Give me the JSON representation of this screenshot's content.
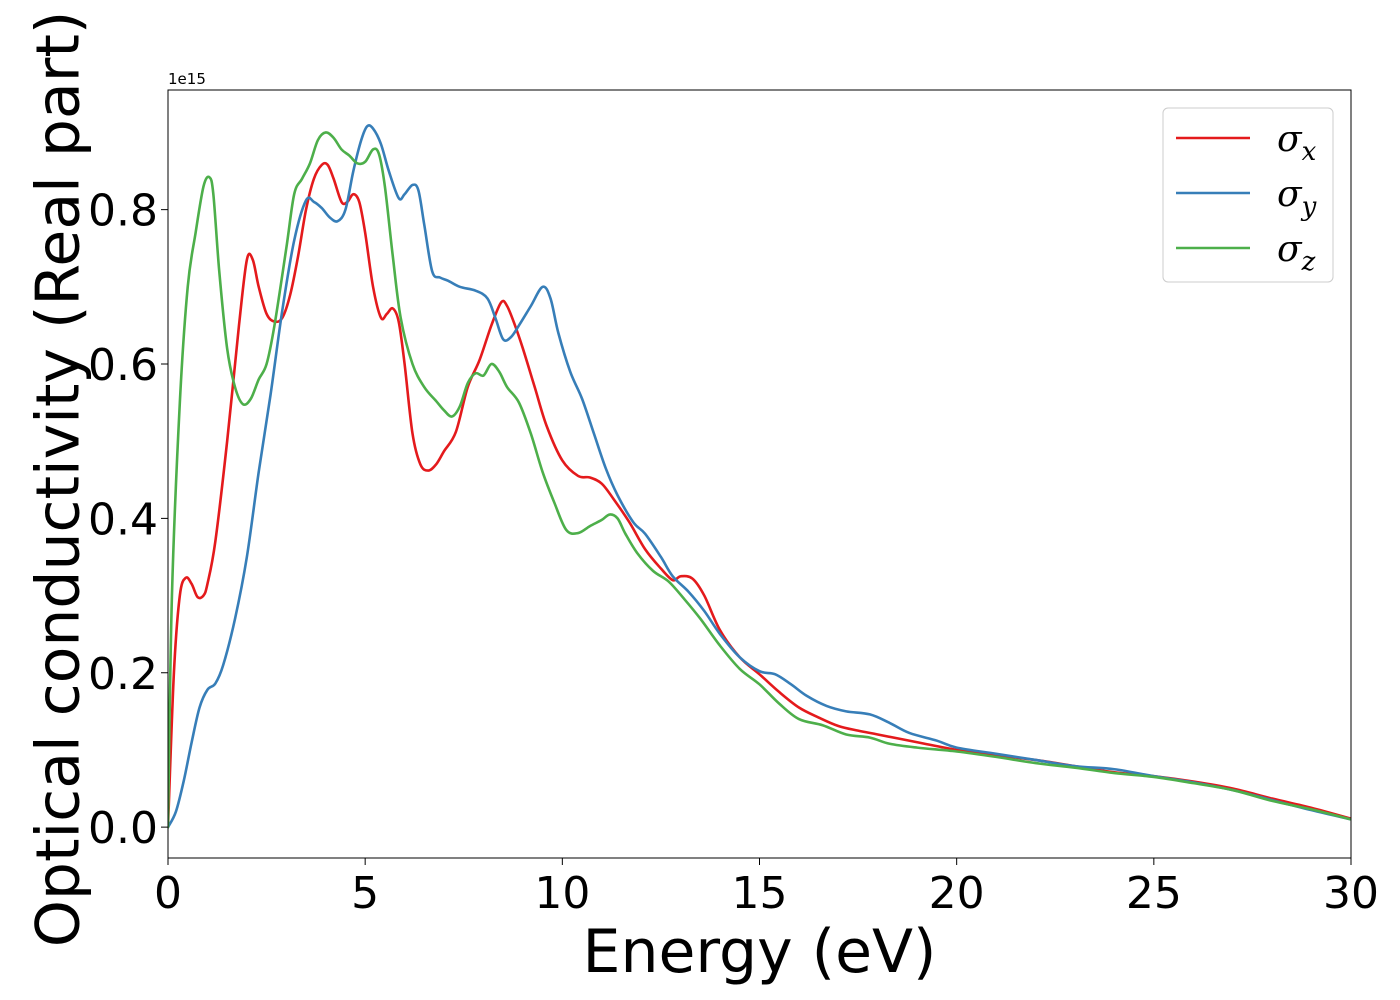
{
  "chart_data": {
    "type": "line",
    "xlabel": "Energy (eV)",
    "ylabel": "Optical conductivity (Real part)",
    "y_offset_text": "1e15",
    "xlim": [
      0,
      30
    ],
    "ylim": [
      -0.04,
      0.955
    ],
    "x_ticks": [
      0,
      5,
      10,
      15,
      20,
      25,
      30
    ],
    "x_tick_labels": [
      "0",
      "5",
      "10",
      "15",
      "20",
      "25",
      "30"
    ],
    "y_ticks": [
      0.0,
      0.2,
      0.4,
      0.6,
      0.8
    ],
    "y_tick_labels": [
      "0.0",
      "0.2",
      "0.4",
      "0.6",
      "0.8"
    ],
    "grid": false,
    "legend_position": "top-right",
    "series": [
      {
        "name": "σx",
        "legend_base": "σ",
        "legend_sub": "x",
        "color": "#e41a1c",
        "points": [
          [
            0,
            0
          ],
          [
            0.15,
            0.2
          ],
          [
            0.3,
            0.3
          ],
          [
            0.45,
            0.323
          ],
          [
            0.6,
            0.315
          ],
          [
            0.75,
            0.298
          ],
          [
            0.9,
            0.3
          ],
          [
            1.0,
            0.315
          ],
          [
            1.2,
            0.37
          ],
          [
            1.5,
            0.5
          ],
          [
            1.8,
            0.65
          ],
          [
            2.0,
            0.735
          ],
          [
            2.15,
            0.735
          ],
          [
            2.3,
            0.7
          ],
          [
            2.5,
            0.665
          ],
          [
            2.7,
            0.655
          ],
          [
            2.9,
            0.66
          ],
          [
            3.1,
            0.69
          ],
          [
            3.3,
            0.74
          ],
          [
            3.5,
            0.8
          ],
          [
            3.7,
            0.84
          ],
          [
            3.9,
            0.858
          ],
          [
            4.05,
            0.858
          ],
          [
            4.2,
            0.84
          ],
          [
            4.4,
            0.81
          ],
          [
            4.55,
            0.81
          ],
          [
            4.7,
            0.82
          ],
          [
            4.85,
            0.81
          ],
          [
            5.0,
            0.77
          ],
          [
            5.2,
            0.7
          ],
          [
            5.4,
            0.66
          ],
          [
            5.55,
            0.665
          ],
          [
            5.7,
            0.672
          ],
          [
            5.85,
            0.655
          ],
          [
            6.0,
            0.6
          ],
          [
            6.2,
            0.51
          ],
          [
            6.4,
            0.47
          ],
          [
            6.6,
            0.462
          ],
          [
            6.8,
            0.47
          ],
          [
            7.0,
            0.487
          ],
          [
            7.3,
            0.512
          ],
          [
            7.6,
            0.57
          ],
          [
            7.9,
            0.605
          ],
          [
            8.2,
            0.65
          ],
          [
            8.45,
            0.68
          ],
          [
            8.6,
            0.675
          ],
          [
            8.8,
            0.65
          ],
          [
            9.0,
            0.62
          ],
          [
            9.3,
            0.57
          ],
          [
            9.6,
            0.52
          ],
          [
            10.0,
            0.475
          ],
          [
            10.4,
            0.455
          ],
          [
            10.7,
            0.453
          ],
          [
            11.0,
            0.445
          ],
          [
            11.3,
            0.425
          ],
          [
            11.7,
            0.395
          ],
          [
            12.1,
            0.36
          ],
          [
            12.5,
            0.335
          ],
          [
            12.8,
            0.32
          ],
          [
            13.0,
            0.325
          ],
          [
            13.3,
            0.322
          ],
          [
            13.6,
            0.3
          ],
          [
            14.0,
            0.255
          ],
          [
            14.5,
            0.22
          ],
          [
            15.0,
            0.198
          ],
          [
            15.5,
            0.175
          ],
          [
            16.0,
            0.155
          ],
          [
            16.5,
            0.142
          ],
          [
            17.0,
            0.131
          ],
          [
            17.5,
            0.125
          ],
          [
            18.0,
            0.12
          ],
          [
            19.0,
            0.11
          ],
          [
            20.0,
            0.1
          ],
          [
            21.0,
            0.093
          ],
          [
            22.0,
            0.087
          ],
          [
            23.0,
            0.079
          ],
          [
            24.0,
            0.071
          ],
          [
            25.0,
            0.066
          ],
          [
            26.0,
            0.059
          ],
          [
            27.0,
            0.05
          ],
          [
            28.0,
            0.037
          ],
          [
            29.0,
            0.025
          ],
          [
            30.0,
            0.011
          ]
        ]
      },
      {
        "name": "σy",
        "legend_base": "σ",
        "legend_sub": "y",
        "color": "#377eb8",
        "points": [
          [
            0,
            0
          ],
          [
            0.2,
            0.02
          ],
          [
            0.4,
            0.06
          ],
          [
            0.6,
            0.11
          ],
          [
            0.8,
            0.155
          ],
          [
            1.0,
            0.178
          ],
          [
            1.2,
            0.186
          ],
          [
            1.4,
            0.21
          ],
          [
            1.7,
            0.27
          ],
          [
            2.0,
            0.35
          ],
          [
            2.3,
            0.46
          ],
          [
            2.6,
            0.56
          ],
          [
            2.9,
            0.67
          ],
          [
            3.2,
            0.76
          ],
          [
            3.5,
            0.812
          ],
          [
            3.7,
            0.81
          ],
          [
            3.9,
            0.802
          ],
          [
            4.1,
            0.79
          ],
          [
            4.3,
            0.785
          ],
          [
            4.5,
            0.8
          ],
          [
            4.7,
            0.85
          ],
          [
            4.9,
            0.89
          ],
          [
            5.05,
            0.908
          ],
          [
            5.2,
            0.905
          ],
          [
            5.4,
            0.885
          ],
          [
            5.6,
            0.85
          ],
          [
            5.85,
            0.815
          ],
          [
            6.0,
            0.82
          ],
          [
            6.2,
            0.832
          ],
          [
            6.35,
            0.825
          ],
          [
            6.5,
            0.78
          ],
          [
            6.7,
            0.72
          ],
          [
            6.9,
            0.712
          ],
          [
            7.1,
            0.708
          ],
          [
            7.4,
            0.7
          ],
          [
            7.8,
            0.695
          ],
          [
            8.1,
            0.685
          ],
          [
            8.3,
            0.66
          ],
          [
            8.5,
            0.632
          ],
          [
            8.7,
            0.635
          ],
          [
            8.9,
            0.65
          ],
          [
            9.2,
            0.675
          ],
          [
            9.5,
            0.7
          ],
          [
            9.7,
            0.685
          ],
          [
            9.9,
            0.64
          ],
          [
            10.2,
            0.59
          ],
          [
            10.5,
            0.555
          ],
          [
            10.8,
            0.51
          ],
          [
            11.1,
            0.465
          ],
          [
            11.4,
            0.43
          ],
          [
            11.8,
            0.395
          ],
          [
            12.1,
            0.38
          ],
          [
            12.5,
            0.35
          ],
          [
            12.8,
            0.325
          ],
          [
            13.2,
            0.305
          ],
          [
            13.6,
            0.28
          ],
          [
            14.0,
            0.25
          ],
          [
            14.5,
            0.22
          ],
          [
            15.0,
            0.202
          ],
          [
            15.4,
            0.198
          ],
          [
            15.8,
            0.185
          ],
          [
            16.2,
            0.17
          ],
          [
            16.7,
            0.157
          ],
          [
            17.2,
            0.15
          ],
          [
            17.8,
            0.146
          ],
          [
            18.3,
            0.135
          ],
          [
            18.8,
            0.122
          ],
          [
            19.5,
            0.112
          ],
          [
            20.0,
            0.103
          ],
          [
            21.0,
            0.095
          ],
          [
            22.0,
            0.087
          ],
          [
            23.0,
            0.079
          ],
          [
            24.0,
            0.075
          ],
          [
            25.0,
            0.066
          ],
          [
            26.0,
            0.058
          ],
          [
            27.0,
            0.048
          ],
          [
            28.0,
            0.035
          ],
          [
            29.0,
            0.022
          ],
          [
            30.0,
            0.01
          ]
        ]
      },
      {
        "name": "σz",
        "legend_base": "σ",
        "legend_sub": "z",
        "color": "#4daf4a",
        "points": [
          [
            0,
            0
          ],
          [
            0.1,
            0.3
          ],
          [
            0.3,
            0.55
          ],
          [
            0.5,
            0.7
          ],
          [
            0.7,
            0.77
          ],
          [
            0.9,
            0.83
          ],
          [
            1.05,
            0.842
          ],
          [
            1.15,
            0.82
          ],
          [
            1.3,
            0.72
          ],
          [
            1.5,
            0.62
          ],
          [
            1.7,
            0.57
          ],
          [
            1.9,
            0.548
          ],
          [
            2.1,
            0.555
          ],
          [
            2.3,
            0.58
          ],
          [
            2.5,
            0.6
          ],
          [
            2.7,
            0.65
          ],
          [
            3.0,
            0.75
          ],
          [
            3.2,
            0.82
          ],
          [
            3.4,
            0.84
          ],
          [
            3.6,
            0.86
          ],
          [
            3.8,
            0.89
          ],
          [
            4.0,
            0.9
          ],
          [
            4.2,
            0.893
          ],
          [
            4.4,
            0.878
          ],
          [
            4.6,
            0.87
          ],
          [
            4.8,
            0.86
          ],
          [
            5.0,
            0.862
          ],
          [
            5.2,
            0.878
          ],
          [
            5.35,
            0.872
          ],
          [
            5.5,
            0.83
          ],
          [
            5.7,
            0.74
          ],
          [
            5.9,
            0.66
          ],
          [
            6.2,
            0.6
          ],
          [
            6.5,
            0.57
          ],
          [
            6.8,
            0.552
          ],
          [
            7.0,
            0.54
          ],
          [
            7.2,
            0.532
          ],
          [
            7.4,
            0.545
          ],
          [
            7.6,
            0.575
          ],
          [
            7.8,
            0.588
          ],
          [
            8.0,
            0.585
          ],
          [
            8.2,
            0.6
          ],
          [
            8.4,
            0.59
          ],
          [
            8.6,
            0.57
          ],
          [
            8.9,
            0.55
          ],
          [
            9.2,
            0.51
          ],
          [
            9.5,
            0.46
          ],
          [
            9.8,
            0.42
          ],
          [
            10.1,
            0.385
          ],
          [
            10.4,
            0.381
          ],
          [
            10.7,
            0.39
          ],
          [
            11.0,
            0.398
          ],
          [
            11.2,
            0.405
          ],
          [
            11.4,
            0.4
          ],
          [
            11.6,
            0.38
          ],
          [
            11.9,
            0.355
          ],
          [
            12.3,
            0.332
          ],
          [
            12.7,
            0.318
          ],
          [
            13.1,
            0.295
          ],
          [
            13.5,
            0.27
          ],
          [
            14.0,
            0.235
          ],
          [
            14.5,
            0.205
          ],
          [
            15.0,
            0.185
          ],
          [
            15.5,
            0.16
          ],
          [
            16.0,
            0.14
          ],
          [
            16.6,
            0.132
          ],
          [
            17.2,
            0.12
          ],
          [
            17.8,
            0.116
          ],
          [
            18.3,
            0.108
          ],
          [
            19.0,
            0.103
          ],
          [
            20.0,
            0.098
          ],
          [
            21.0,
            0.091
          ],
          [
            22.0,
            0.083
          ],
          [
            23.0,
            0.077
          ],
          [
            24.0,
            0.07
          ],
          [
            25.0,
            0.065
          ],
          [
            26.0,
            0.057
          ],
          [
            27.0,
            0.048
          ],
          [
            28.0,
            0.034
          ],
          [
            29.0,
            0.023
          ],
          [
            30.0,
            0.01
          ]
        ]
      }
    ]
  }
}
